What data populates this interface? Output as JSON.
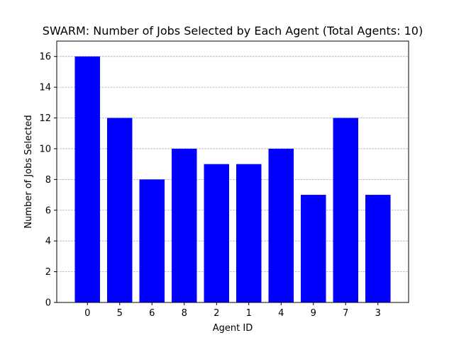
{
  "chart_data": {
    "type": "bar",
    "title": "SWARM: Number of Jobs Selected by Each Agent (Total Agents: 10)",
    "xlabel": "Agent ID",
    "ylabel": "Number of Jobs Selected",
    "categories": [
      "0",
      "5",
      "6",
      "8",
      "2",
      "1",
      "4",
      "9",
      "7",
      "3"
    ],
    "values": [
      16,
      12,
      8,
      10,
      9,
      9,
      10,
      7,
      12,
      7
    ],
    "ylim": [
      0,
      17
    ],
    "yticks": [
      0,
      2,
      4,
      6,
      8,
      10,
      12,
      14,
      16
    ],
    "ytick_labels": [
      "0",
      "2",
      "4",
      "6",
      "8",
      "10",
      "12",
      "14",
      "16"
    ],
    "grid": "y-axis dashed",
    "bar_color": "#0000ff"
  }
}
